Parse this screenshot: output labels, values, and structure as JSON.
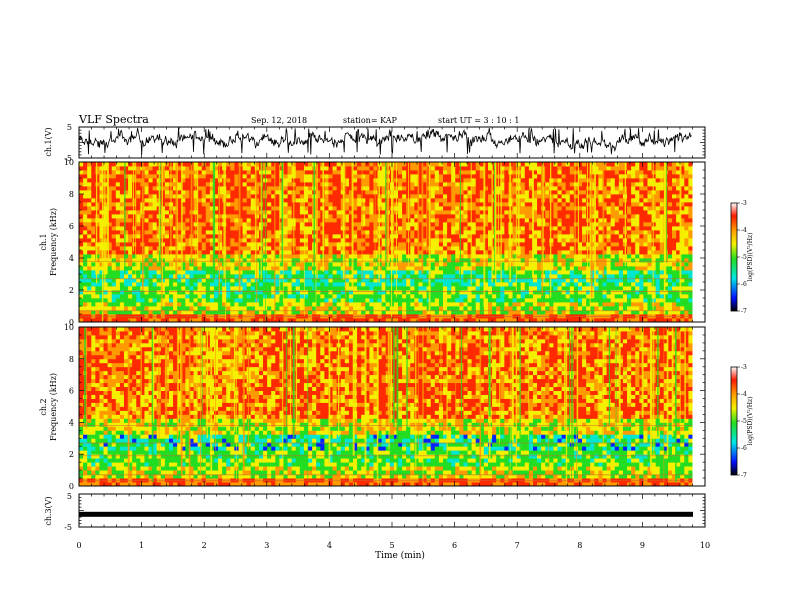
{
  "header": {
    "title": "VLF Spectra",
    "date": "Sep. 12, 2018",
    "station": "station= KAP",
    "start": "start  UT =   3 : 10 : 1"
  },
  "chart_data": [
    {
      "type": "line",
      "panel": "ch1-waveform",
      "ylabel": "ch.1(V)",
      "ylim": [
        -5,
        5
      ],
      "yticks": [
        "5",
        "-5"
      ],
      "xlim": [
        0,
        10
      ]
    },
    {
      "type": "heatmap",
      "panel": "ch1-spectrogram",
      "ylabel": [
        "ch.1",
        "Frequency  (kHz)"
      ],
      "ylim": [
        0,
        10
      ],
      "yticks": [
        "0",
        "2",
        "4",
        "6",
        "8",
        "10"
      ],
      "xlim": [
        0,
        10
      ],
      "colorbar": {
        "label": "log(PSD)(V²/Hz)",
        "range": [
          -7,
          -3
        ],
        "ticks": [
          "-3",
          "-4",
          "-5",
          "-6",
          "-7"
        ]
      }
    },
    {
      "type": "heatmap",
      "panel": "ch2-spectrogram",
      "ylabel": [
        "ch.2",
        "Frequency  (kHz)"
      ],
      "ylim": [
        0,
        10
      ],
      "yticks": [
        "0",
        "2",
        "4",
        "6",
        "8",
        "10"
      ],
      "xlim": [
        0,
        10
      ],
      "colorbar": {
        "label": "log(PSD)(V²/Hz)",
        "range": [
          -7,
          -3
        ],
        "ticks": [
          "-3",
          "-4",
          "-5",
          "-6",
          "-7"
        ]
      }
    },
    {
      "type": "line",
      "panel": "ch3-waveform",
      "ylabel": "ch.3(V)",
      "ylim": [
        -5,
        5
      ],
      "yticks": [
        "5",
        "-5"
      ],
      "xlim": [
        0,
        10
      ],
      "level": -1
    }
  ],
  "xaxis": {
    "label": "Time  (min)",
    "ticks": [
      "0",
      "1",
      "2",
      "3",
      "4",
      "5",
      "6",
      "7",
      "8",
      "9",
      "10"
    ]
  },
  "colors": {
    "red": "#ff2a00",
    "orange": "#ff9a00",
    "yellow": "#f4f000",
    "green": "#22dd22",
    "cyan": "#00e6d0",
    "blue": "#0024ff",
    "navy": "#000a70"
  }
}
